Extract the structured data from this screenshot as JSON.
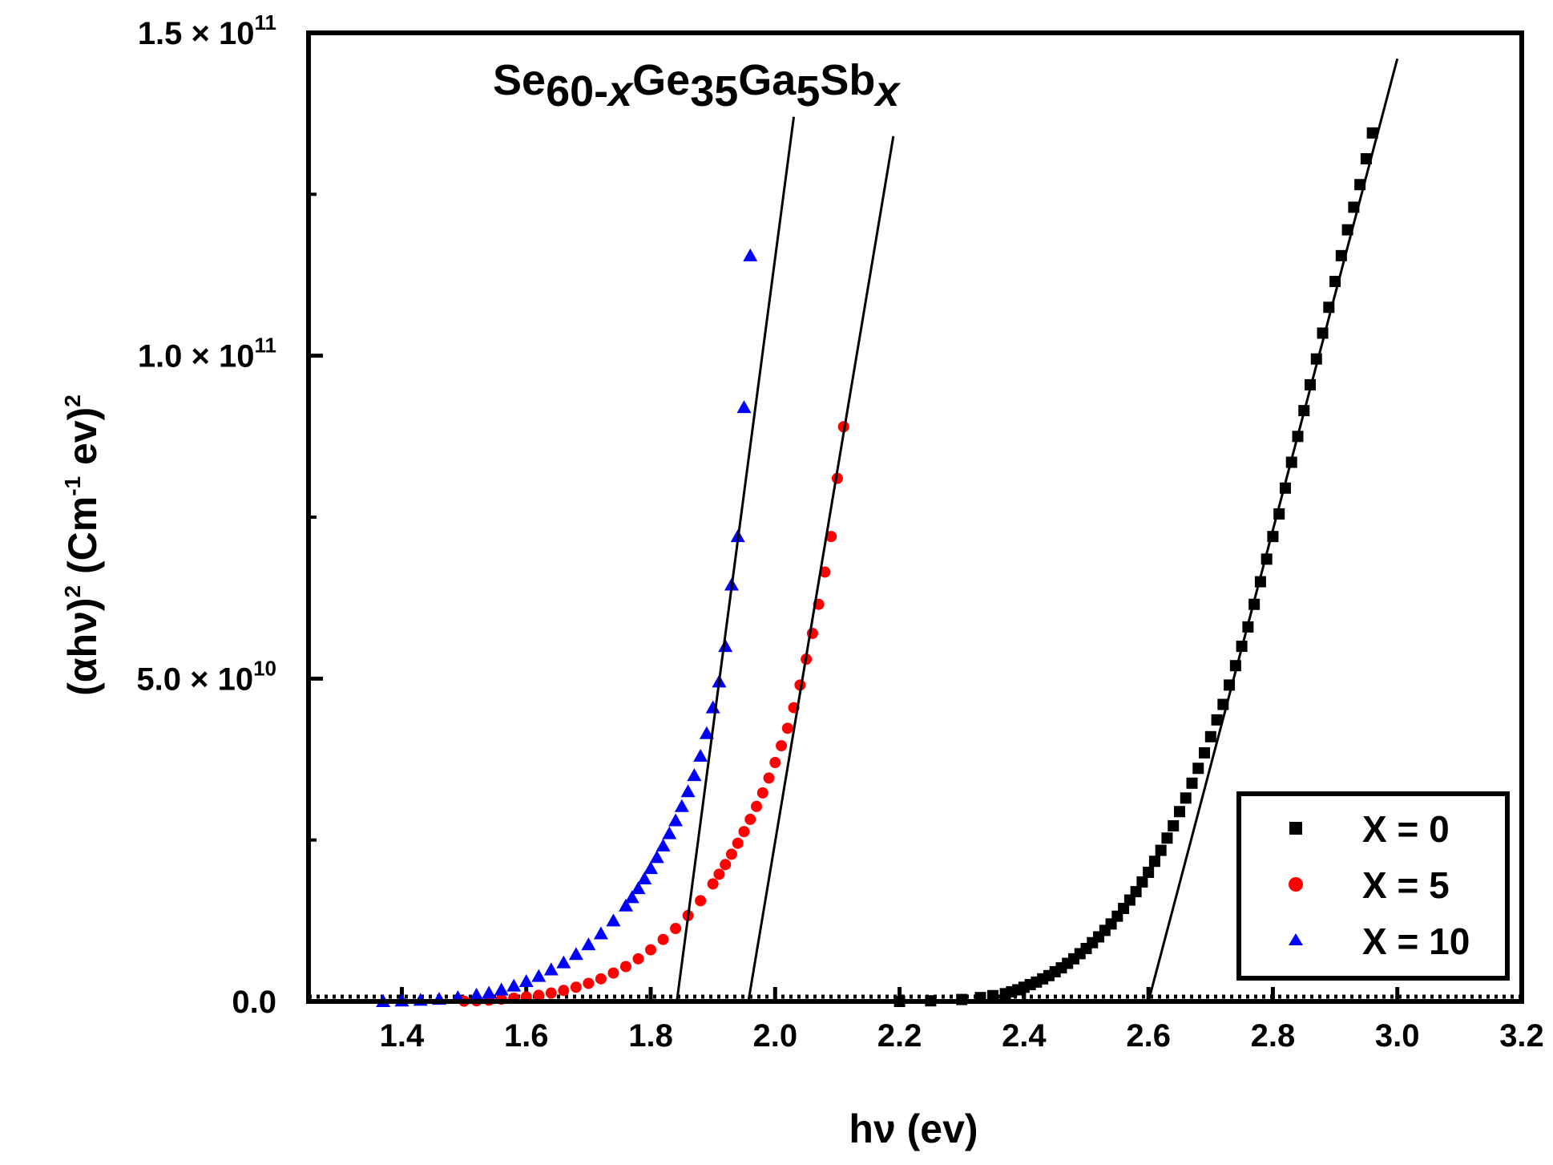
{
  "chart_data": {
    "type": "scatter",
    "title": {
      "base1": "Se",
      "sub1": "60-",
      "var1": "x",
      "base2": "Ge",
      "sub2": "35",
      "base3": "Ga",
      "sub3": "5",
      "base4": "Sb",
      "var2": "x"
    },
    "xlabel": "hν (ev)",
    "ylabel": {
      "open": "(αhν)",
      "sup1": "2",
      "unit_a": " (Cm",
      "sup2": "-1",
      "unit_b": " ev)",
      "sup3": "2"
    },
    "xlim": [
      1.25,
      3.2
    ],
    "ylim": [
      0,
      150000000000.0
    ],
    "x_ticks": [
      {
        "value": 1.4,
        "label": "1.4"
      },
      {
        "value": 1.6,
        "label": "1.6"
      },
      {
        "value": 1.8,
        "label": "1.8"
      },
      {
        "value": 2.0,
        "label": "2.0"
      },
      {
        "value": 2.2,
        "label": "2.2"
      },
      {
        "value": 2.4,
        "label": "2.4"
      },
      {
        "value": 2.6,
        "label": "2.6"
      },
      {
        "value": 2.8,
        "label": "2.8"
      },
      {
        "value": 3.0,
        "label": "3.0"
      },
      {
        "value": 3.2,
        "label": "3.2"
      }
    ],
    "y_ticks": [
      {
        "value": 0,
        "mantissa": "0.0",
        "exp": ""
      },
      {
        "value": 50000000000.0,
        "mantissa": "5.0 × 10",
        "exp": "10"
      },
      {
        "value": 100000000000.0,
        "mantissa": "1.0 × 10",
        "exp": "11"
      },
      {
        "value": 150000000000.0,
        "mantissa": "1.5 × 10",
        "exp": "11"
      }
    ],
    "y_minor_ticks": [
      25000000000.0,
      75000000000.0,
      125000000000.0
    ],
    "series": [
      {
        "name": "X = 0",
        "color": "#000000",
        "marker": "square",
        "x": [
          2.2,
          2.25,
          2.3,
          2.33,
          2.35,
          2.37,
          2.38,
          2.39,
          2.4,
          2.41,
          2.42,
          2.43,
          2.44,
          2.45,
          2.46,
          2.47,
          2.48,
          2.49,
          2.5,
          2.51,
          2.52,
          2.53,
          2.54,
          2.55,
          2.56,
          2.57,
          2.58,
          2.59,
          2.6,
          2.61,
          2.62,
          2.63,
          2.64,
          2.65,
          2.66,
          2.67,
          2.68,
          2.69,
          2.7,
          2.71,
          2.72,
          2.73,
          2.74,
          2.75,
          2.76,
          2.77,
          2.78,
          2.79,
          2.8,
          2.81,
          2.82,
          2.83,
          2.84,
          2.85,
          2.86,
          2.87,
          2.88,
          2.89,
          2.9,
          2.91,
          2.92,
          2.93,
          2.94,
          2.95,
          2.96
        ],
        "y_e9": [
          0,
          0.1,
          0.3,
          0.6,
          0.9,
          1.2,
          1.5,
          1.8,
          2.2,
          2.6,
          3.0,
          3.5,
          4.0,
          4.6,
          5.2,
          5.9,
          6.6,
          7.4,
          8.2,
          9.1,
          10.0,
          11.0,
          12.0,
          13.2,
          14.4,
          15.7,
          17.0,
          18.5,
          20.0,
          21.7,
          23.4,
          25.3,
          27.2,
          29.4,
          31.5,
          33.8,
          36.1,
          38.5,
          41.0,
          43.6,
          46.0,
          49.0,
          52.0,
          55.0,
          58.0,
          61.5,
          65.0,
          68.5,
          72.0,
          75.5,
          79.5,
          83.5,
          87.5,
          91.5,
          95.5,
          99.5,
          103.5,
          107.5,
          111.5,
          115.5,
          119.5,
          123.0,
          126.5,
          130.5,
          134.5
        ]
      },
      {
        "name": "X = 5",
        "color": "#ff0000",
        "marker": "circle",
        "x": [
          1.5,
          1.52,
          1.54,
          1.56,
          1.58,
          1.6,
          1.62,
          1.64,
          1.66,
          1.68,
          1.7,
          1.72,
          1.74,
          1.76,
          1.78,
          1.8,
          1.82,
          1.84,
          1.86,
          1.88,
          1.9,
          1.91,
          1.92,
          1.93,
          1.94,
          1.95,
          1.96,
          1.97,
          1.98,
          1.99,
          2.0,
          2.01,
          2.02,
          2.03,
          2.04,
          2.05,
          2.06,
          2.07,
          2.08,
          2.09,
          2.1,
          2.11
        ],
        "y_e9": [
          0.05,
          0.1,
          0.2,
          0.35,
          0.5,
          0.7,
          0.95,
          1.3,
          1.7,
          2.2,
          2.8,
          3.5,
          4.4,
          5.4,
          6.6,
          8.0,
          9.6,
          11.3,
          13.3,
          15.6,
          18.2,
          19.7,
          21.2,
          22.8,
          24.5,
          26.3,
          28.2,
          30.2,
          32.3,
          34.6,
          37.0,
          39.6,
          42.3,
          45.5,
          49.0,
          53.0,
          57.0,
          61.5,
          66.5,
          72.0,
          81.0,
          89.0
        ]
      },
      {
        "name": "X = 10",
        "color": "#0000ff",
        "marker": "triangle",
        "x": [
          1.37,
          1.4,
          1.43,
          1.46,
          1.49,
          1.52,
          1.54,
          1.56,
          1.58,
          1.6,
          1.62,
          1.64,
          1.66,
          1.68,
          1.7,
          1.72,
          1.74,
          1.76,
          1.77,
          1.78,
          1.79,
          1.8,
          1.81,
          1.82,
          1.83,
          1.84,
          1.85,
          1.86,
          1.87,
          1.88,
          1.89,
          1.9,
          1.91,
          1.92,
          1.93,
          1.94,
          1.95,
          1.96
        ],
        "y_e9": [
          0,
          0.1,
          0.2,
          0.35,
          0.6,
          1.0,
          1.3,
          1.8,
          2.4,
          3.1,
          3.9,
          4.9,
          6.0,
          7.3,
          8.8,
          10.5,
          12.5,
          14.8,
          16.1,
          17.5,
          19.0,
          20.6,
          22.3,
          24.1,
          26.0,
          28.0,
          30.2,
          32.5,
          35.0,
          38.0,
          41.5,
          45.5,
          49.5,
          55.0,
          64.5,
          72.0,
          92.0,
          115.5
        ]
      }
    ],
    "fit_lines": [
      {
        "series": "X = 10",
        "x": [
          1.842,
          2.03
        ],
        "y_e9": [
          0,
          137
        ]
      },
      {
        "series": "X = 5",
        "x": [
          1.957,
          2.19
        ],
        "y_e9": [
          0,
          134
        ]
      },
      {
        "series": "X = 0",
        "x": [
          2.6,
          3.0
        ],
        "y_e9": [
          0,
          146
        ]
      }
    ],
    "legend_position": "bottom-right"
  }
}
